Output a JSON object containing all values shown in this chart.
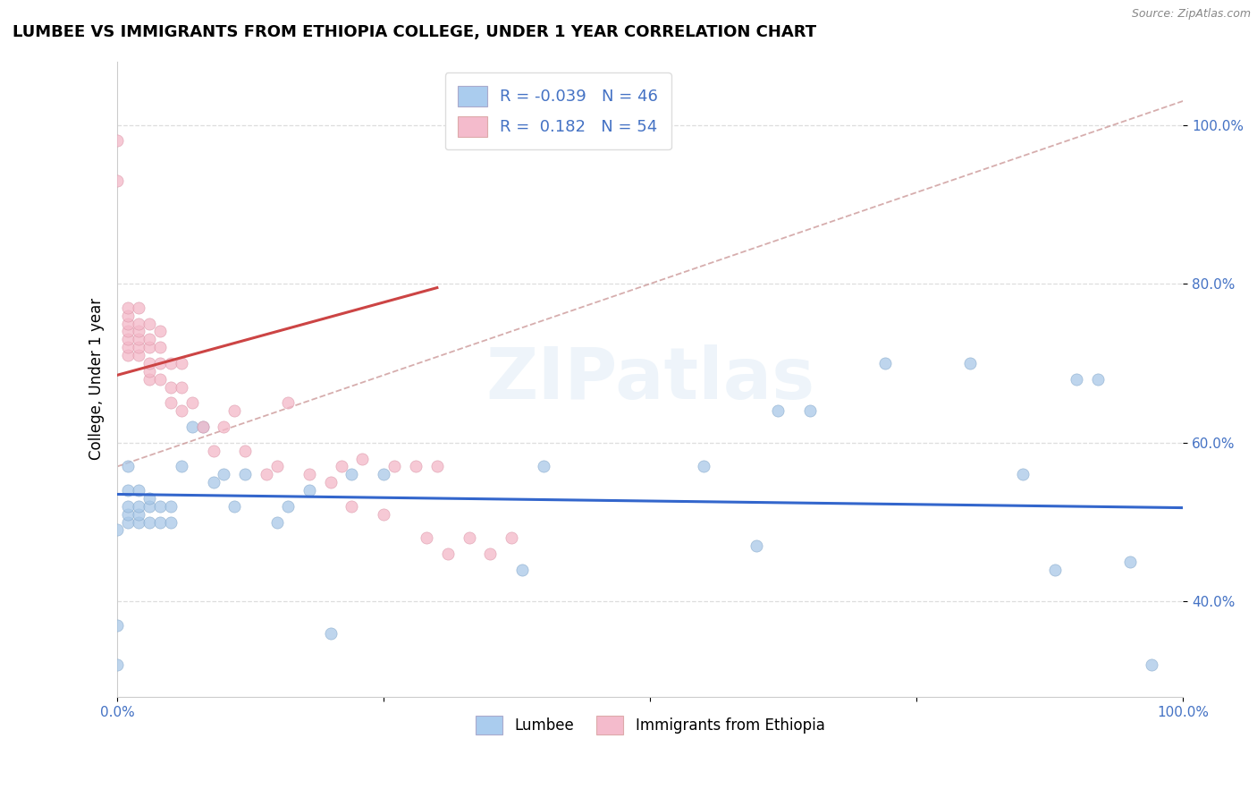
{
  "title": "LUMBEE VS IMMIGRANTS FROM ETHIOPIA COLLEGE, UNDER 1 YEAR CORRELATION CHART",
  "source": "Source: ZipAtlas.com",
  "ylabel": "College, Under 1 year",
  "xlim": [
    0.0,
    1.0
  ],
  "ylim": [
    0.28,
    1.08
  ],
  "watermark": "ZIPatlas",
  "blue_color": "#a8c8e8",
  "pink_color": "#f4b8c8",
  "blue_line_color": "#3366cc",
  "pink_line_color": "#cc4444",
  "dashed_color": "#ccaaaa",
  "lumbee_x": [
    0.0,
    0.0,
    0.0,
    0.01,
    0.01,
    0.01,
    0.01,
    0.01,
    0.02,
    0.02,
    0.02,
    0.02,
    0.03,
    0.03,
    0.03,
    0.04,
    0.04,
    0.05,
    0.05,
    0.06,
    0.07,
    0.08,
    0.09,
    0.1,
    0.11,
    0.12,
    0.15,
    0.16,
    0.18,
    0.2,
    0.22,
    0.25,
    0.38,
    0.4,
    0.55,
    0.6,
    0.62,
    0.65,
    0.72,
    0.8,
    0.85,
    0.88,
    0.9,
    0.92,
    0.95,
    0.97
  ],
  "lumbee_y": [
    0.32,
    0.37,
    0.49,
    0.5,
    0.51,
    0.52,
    0.54,
    0.57,
    0.5,
    0.51,
    0.52,
    0.54,
    0.5,
    0.52,
    0.53,
    0.5,
    0.52,
    0.5,
    0.52,
    0.57,
    0.62,
    0.62,
    0.55,
    0.56,
    0.52,
    0.56,
    0.5,
    0.52,
    0.54,
    0.36,
    0.56,
    0.56,
    0.44,
    0.57,
    0.57,
    0.47,
    0.64,
    0.64,
    0.7,
    0.7,
    0.56,
    0.44,
    0.68,
    0.68,
    0.45,
    0.32
  ],
  "ethiopia_x": [
    0.0,
    0.0,
    0.01,
    0.01,
    0.01,
    0.01,
    0.01,
    0.01,
    0.01,
    0.02,
    0.02,
    0.02,
    0.02,
    0.02,
    0.02,
    0.03,
    0.03,
    0.03,
    0.03,
    0.03,
    0.03,
    0.04,
    0.04,
    0.04,
    0.04,
    0.05,
    0.05,
    0.05,
    0.06,
    0.06,
    0.06,
    0.07,
    0.08,
    0.09,
    0.1,
    0.11,
    0.12,
    0.14,
    0.15,
    0.16,
    0.18,
    0.2,
    0.21,
    0.22,
    0.23,
    0.25,
    0.26,
    0.28,
    0.29,
    0.3,
    0.31,
    0.33,
    0.35,
    0.37
  ],
  "ethiopia_y": [
    0.93,
    0.98,
    0.71,
    0.72,
    0.73,
    0.74,
    0.75,
    0.76,
    0.77,
    0.71,
    0.72,
    0.73,
    0.74,
    0.75,
    0.77,
    0.68,
    0.69,
    0.7,
    0.72,
    0.73,
    0.75,
    0.68,
    0.7,
    0.72,
    0.74,
    0.65,
    0.67,
    0.7,
    0.64,
    0.67,
    0.7,
    0.65,
    0.62,
    0.59,
    0.62,
    0.64,
    0.59,
    0.56,
    0.57,
    0.65,
    0.56,
    0.55,
    0.57,
    0.52,
    0.58,
    0.51,
    0.57,
    0.57,
    0.48,
    0.57,
    0.46,
    0.48,
    0.46,
    0.48
  ],
  "blue_line_x": [
    0.0,
    1.0
  ],
  "blue_line_y": [
    0.535,
    0.518
  ],
  "pink_line_x": [
    0.0,
    0.3
  ],
  "pink_line_y": [
    0.685,
    0.795
  ],
  "dashed_line_x": [
    0.0,
    1.0
  ],
  "dashed_line_y": [
    0.57,
    1.03
  ],
  "yticks": [
    0.4,
    0.6,
    0.8,
    1.0
  ],
  "yticklabels": [
    "40.0%",
    "60.0%",
    "80.0%",
    "100.0%"
  ],
  "xticks": [
    0.0,
    0.25,
    0.5,
    0.75,
    1.0
  ],
  "xticklabels": [
    "0.0%",
    "",
    "",
    "",
    "100.0%"
  ]
}
